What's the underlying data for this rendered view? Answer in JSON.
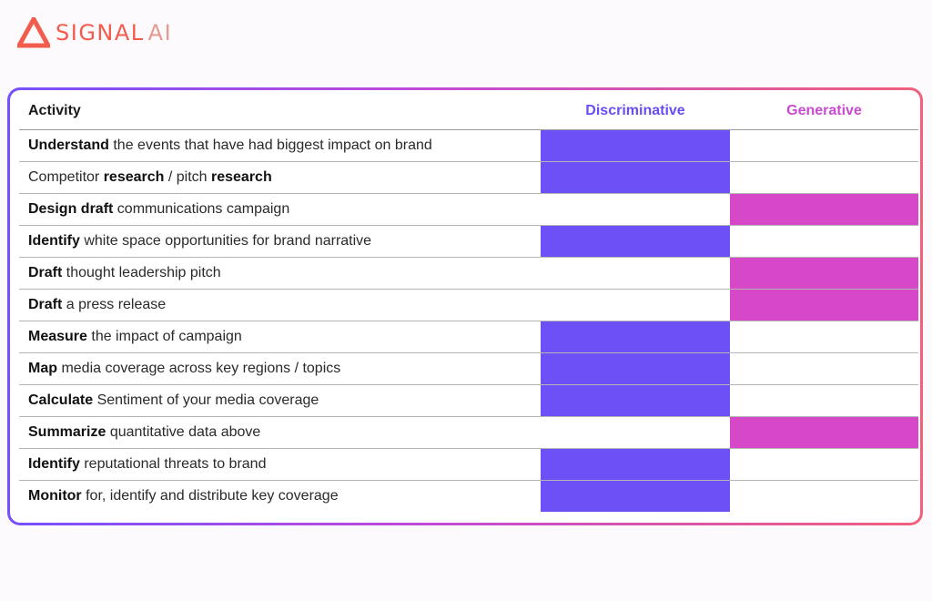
{
  "brand": {
    "name": "SIGNAL",
    "suffix": "AI",
    "icon": "triangle-logo-icon",
    "color": "#f25c4c"
  },
  "table": {
    "headers": {
      "activity": "Activity",
      "discriminative": "Discriminative",
      "generative": "Generative"
    },
    "colors": {
      "discriminative": "#6d50f6",
      "generative": "#d648c8"
    },
    "rows": [
      {
        "segments": [
          {
            "text": "Understand",
            "bold": true
          },
          {
            "text": " the events that have had biggest impact on brand",
            "bold": false
          }
        ],
        "type": "discriminative"
      },
      {
        "segments": [
          {
            "text": "Competitor ",
            "bold": false
          },
          {
            "text": "research",
            "bold": true
          },
          {
            "text": " / pitch ",
            "bold": false
          },
          {
            "text": "research",
            "bold": true
          }
        ],
        "type": "discriminative"
      },
      {
        "segments": [
          {
            "text": "Design draft",
            "bold": true
          },
          {
            "text": " communications campaign",
            "bold": false
          }
        ],
        "type": "generative"
      },
      {
        "segments": [
          {
            "text": "Identify",
            "bold": true
          },
          {
            "text": " white space opportunities for brand narrative",
            "bold": false
          }
        ],
        "type": "discriminative"
      },
      {
        "segments": [
          {
            "text": "Draft",
            "bold": true
          },
          {
            "text": " thought leadership pitch",
            "bold": false
          }
        ],
        "type": "generative"
      },
      {
        "segments": [
          {
            "text": "Draft",
            "bold": true
          },
          {
            "text": " a press release",
            "bold": false
          }
        ],
        "type": "generative"
      },
      {
        "segments": [
          {
            "text": "Measure",
            "bold": true
          },
          {
            "text": " the impact of campaign",
            "bold": false
          }
        ],
        "type": "discriminative"
      },
      {
        "segments": [
          {
            "text": "Map",
            "bold": true
          },
          {
            "text": " media coverage across key regions / topics",
            "bold": false
          }
        ],
        "type": "discriminative"
      },
      {
        "segments": [
          {
            "text": "Calculate",
            "bold": true
          },
          {
            "text": " Sentiment of your media coverage",
            "bold": false
          }
        ],
        "type": "discriminative"
      },
      {
        "segments": [
          {
            "text": "Summarize",
            "bold": true
          },
          {
            "text": " quantitative data above",
            "bold": false
          }
        ],
        "type": "generative"
      },
      {
        "segments": [
          {
            "text": "Identify",
            "bold": true
          },
          {
            "text": " reputational threats to brand",
            "bold": false
          }
        ],
        "type": "discriminative"
      },
      {
        "segments": [
          {
            "text": "Monitor",
            "bold": true
          },
          {
            "text": " for, identify and distribute key coverage",
            "bold": false
          }
        ],
        "type": "discriminative"
      }
    ]
  }
}
